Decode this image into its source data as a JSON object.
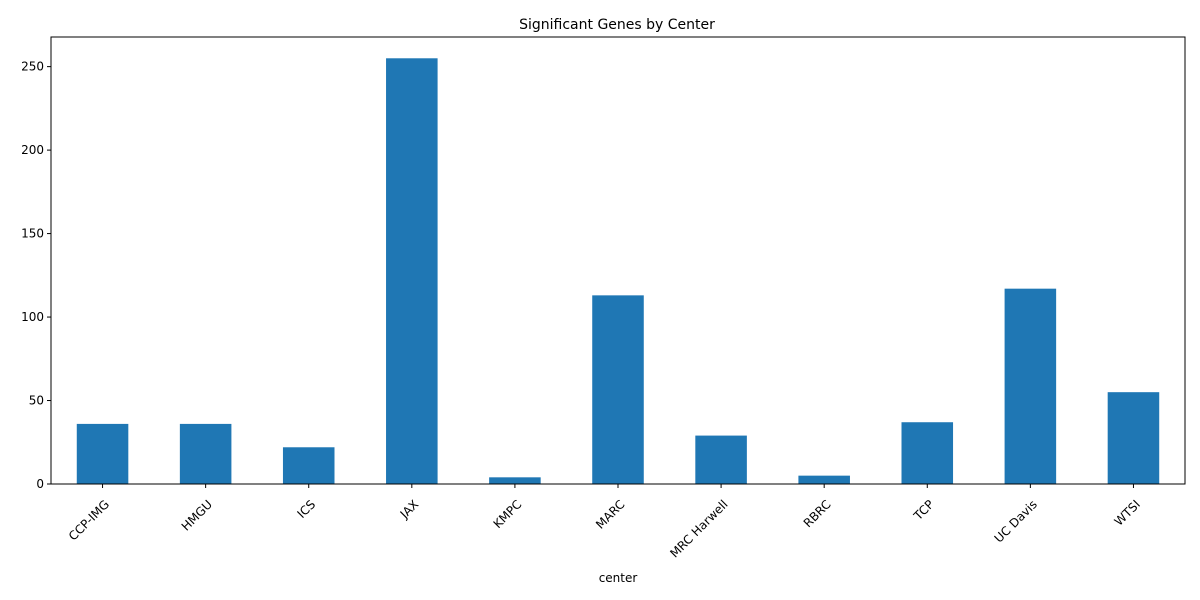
{
  "chart_data": {
    "type": "bar",
    "title": "Significant Genes by Center",
    "xlabel": "center",
    "ylabel": "",
    "categories": [
      "CCP-IMG",
      "HMGU",
      "ICS",
      "JAX",
      "KMPC",
      "MARC",
      "MRC Harwell",
      "RBRC",
      "TCP",
      "UC Davis",
      "WTSI"
    ],
    "values": [
      36,
      36,
      22,
      255,
      4,
      113,
      29,
      5,
      37,
      117,
      55
    ],
    "ylim": [
      0,
      267.75
    ],
    "yticks": [
      0,
      50,
      100,
      150,
      200,
      250
    ],
    "bar_color": "#1f77b4",
    "grid": false,
    "legend": "none"
  }
}
